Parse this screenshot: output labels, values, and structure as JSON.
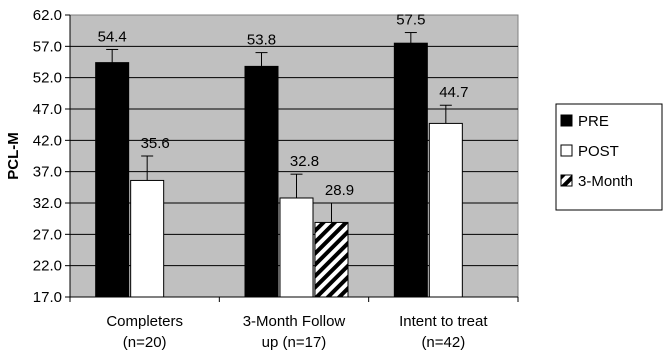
{
  "chart_data": {
    "type": "bar",
    "title": "",
    "xlabel": "",
    "ylabel": "PCL-M",
    "ylim": [
      17.0,
      62.0
    ],
    "yticks": [
      "17.0",
      "22.0",
      "27.0",
      "32.0",
      "37.0",
      "42.0",
      "47.0",
      "52.0",
      "57.0",
      "62.0"
    ],
    "grid": true,
    "legend_position": "right",
    "categories": [
      {
        "line1": "Completers",
        "line2": "(n=20)"
      },
      {
        "line1": "3-Month Follow",
        "line2": "up (n=17)"
      },
      {
        "line1": "Intent to treat",
        "line2": "(n=42)"
      }
    ],
    "series": [
      {
        "name": "PRE",
        "fill": "solid",
        "color": "#000000",
        "values": [
          54.4,
          53.8,
          57.5
        ],
        "labels": [
          "54.4",
          "53.8",
          "57.5"
        ],
        "error_top": [
          56.5,
          56.0,
          59.2
        ]
      },
      {
        "name": "POST",
        "fill": "white",
        "color": "#ffffff",
        "values": [
          35.6,
          32.8,
          44.7
        ],
        "labels": [
          "35.6",
          "32.8",
          "44.7"
        ],
        "error_top": [
          39.5,
          36.6,
          47.6
        ]
      },
      {
        "name": "3-Month",
        "fill": "hatched",
        "color": "#000000",
        "values": [
          null,
          28.9,
          null
        ],
        "labels": [
          "",
          "28.9",
          ""
        ],
        "error_top": [
          null,
          32.0,
          null
        ]
      }
    ],
    "plot_background": "#c0c0c0"
  }
}
